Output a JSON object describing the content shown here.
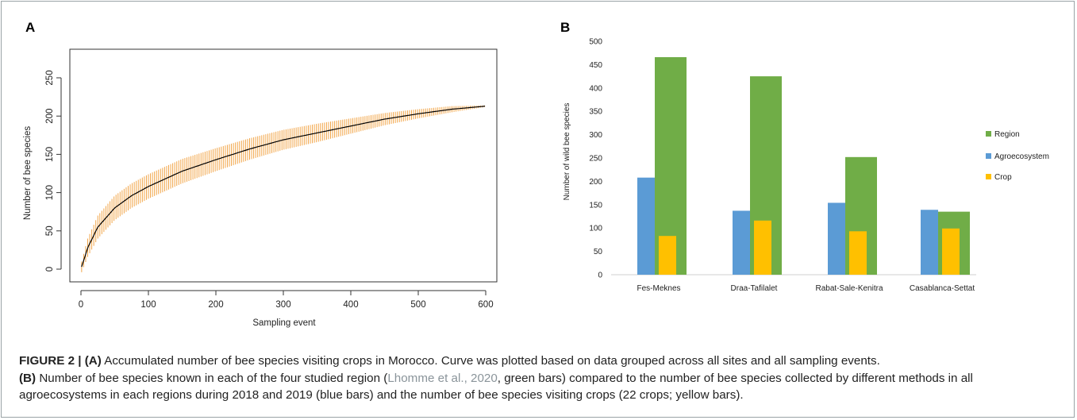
{
  "panels": {
    "a": "A",
    "b": "B"
  },
  "chart_data": [
    {
      "type": "line",
      "panel": "A",
      "xlabel": "Sampling event",
      "ylabel": "Number of bee species",
      "xlim": [
        0,
        600
      ],
      "ylim": [
        0,
        250
      ],
      "xticks": [
        "0",
        "100",
        "200",
        "300",
        "400",
        "500",
        "600"
      ],
      "yticks": [
        "0",
        "50",
        "100",
        "150",
        "200",
        "250"
      ],
      "series": [
        {
          "x": [
            1,
            10,
            25,
            50,
            75,
            100,
            150,
            200,
            250,
            300,
            350,
            400,
            450,
            500,
            550,
            600
          ],
          "values": [
            3,
            28,
            55,
            80,
            96,
            108,
            128,
            143,
            157,
            169,
            178,
            187,
            196,
            203,
            209,
            213
          ],
          "ci_half_width": [
            7,
            12,
            15,
            16,
            16,
            16,
            16,
            15,
            14,
            13,
            12,
            10,
            8,
            6,
            4,
            1
          ]
        }
      ],
      "colors": {
        "line": "#000000",
        "error_bars": "#f2a64a"
      }
    },
    {
      "type": "bar",
      "panel": "B",
      "ylabel": "Number of wild bee species",
      "ylim": [
        0,
        500
      ],
      "yticks": [
        "0",
        "50",
        "100",
        "150",
        "200",
        "250",
        "300",
        "350",
        "400",
        "450",
        "500"
      ],
      "categories": [
        "Fes-Meknes",
        "Draa-Tafilalet",
        "Rabat-Sale-Kenitra",
        "Casablanca-Settat"
      ],
      "series": [
        {
          "name": "Region",
          "values": [
            466,
            425,
            252,
            135
          ],
          "color": "#70ad47"
        },
        {
          "name": "Agroecosystem",
          "values": [
            208,
            137,
            154,
            139
          ],
          "color": "#5b9bd5"
        },
        {
          "name": "Crop",
          "values": [
            83,
            116,
            93,
            99
          ],
          "color": "#ffc000"
        }
      ],
      "legend": "right"
    }
  ],
  "caption": {
    "label": "FIGURE 2 | (A)",
    "text_a": " Accumulated number of bee species visiting crops in Morocco. Curve was plotted based on data grouped across all sites and all sampling events.",
    "label_b": "(B)",
    "text_b1": " Number of bee species known in each of the four studied region (",
    "citation": "Lhomme et al., 2020",
    "text_b2": ", green bars) compared to the number of bee species collected by different methods in all agroecosystems in each regions during 2018 and 2019 (blue bars) and the number of bee species visiting crops (22 crops; yellow bars)."
  }
}
